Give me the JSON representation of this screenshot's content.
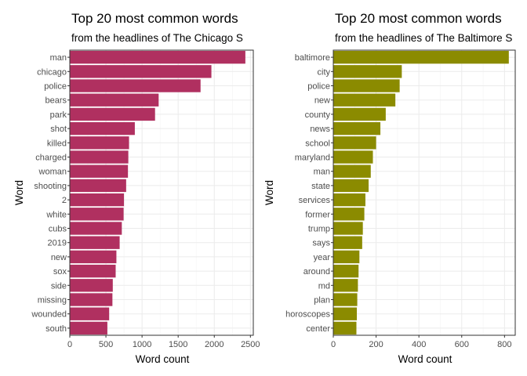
{
  "chart_data": [
    {
      "type": "bar",
      "orientation": "horizontal",
      "title": "Top 20 most common words",
      "subtitle": "from the headlines of The Chicago S",
      "xlabel": "Word count",
      "ylabel": "Word",
      "xlim": [
        0,
        2540
      ],
      "xticks": [
        "0",
        "500",
        "1000",
        "1500",
        "2000",
        "2500"
      ],
      "color": "#B03060",
      "grid": true,
      "categories": [
        "man",
        "chicago",
        "police",
        "bears",
        "park",
        "shot",
        "killed",
        "charged",
        "woman",
        "shooting",
        "2",
        "white",
        "cubs",
        "2019",
        "new",
        "sox",
        "side",
        "missing",
        "wounded",
        "south"
      ],
      "values": [
        2430,
        1960,
        1810,
        1230,
        1180,
        900,
        820,
        810,
        805,
        780,
        750,
        745,
        720,
        690,
        645,
        635,
        595,
        590,
        545,
        520
      ]
    },
    {
      "type": "bar",
      "orientation": "horizontal",
      "title": "Top 20 most common words",
      "subtitle": "from the headlines of The Baltimore S",
      "xlabel": "Word count",
      "ylabel": "Word",
      "xlim": [
        0,
        850
      ],
      "xticks": [
        "0",
        "200",
        "400",
        "600",
        "800"
      ],
      "color": "#8B8B00",
      "grid": true,
      "categories": [
        "baltimore",
        "city",
        "police",
        "new",
        "county",
        "news",
        "school",
        "maryland",
        "man",
        "state",
        "services",
        "former",
        "trump",
        "says",
        "year",
        "around",
        "md",
        "plan",
        "horoscopes",
        "center"
      ],
      "values": [
        820,
        320,
        310,
        290,
        245,
        220,
        200,
        185,
        175,
        165,
        150,
        145,
        138,
        135,
        122,
        118,
        115,
        112,
        110,
        108
      ]
    }
  ]
}
